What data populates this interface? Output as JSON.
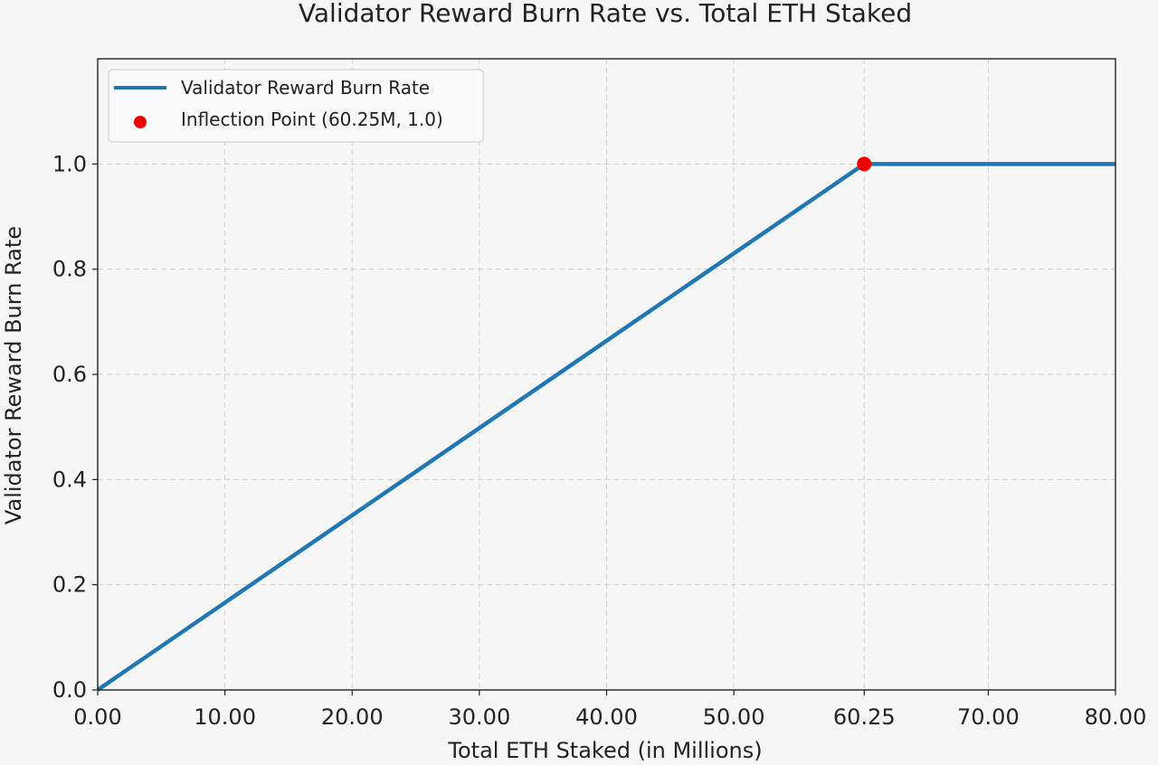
{
  "chart_data": {
    "type": "line",
    "title": "Validator Reward Burn Rate vs. Total ETH Staked",
    "xlabel": "Total ETH Staked (in Millions)",
    "ylabel": "Validator Reward Burn Rate",
    "xlim": [
      0,
      80
    ],
    "ylim": [
      0,
      1.2
    ],
    "x_ticks": [
      "0.00",
      "10.00",
      "20.00",
      "30.00",
      "40.00",
      "50.00",
      "60.25",
      "70.00",
      "80.00"
    ],
    "x_tick_values": [
      0,
      10,
      20,
      30,
      40,
      50,
      60.25,
      70,
      80
    ],
    "y_ticks": [
      "0.0",
      "0.2",
      "0.4",
      "0.6",
      "0.8",
      "1.0"
    ],
    "y_tick_values": [
      0,
      0.2,
      0.4,
      0.6,
      0.8,
      1.0
    ],
    "grid": true,
    "legend_position": "top-left",
    "series": [
      {
        "name": "Validator Reward Burn Rate",
        "kind": "line",
        "color": "#1f77b4",
        "x": [
          0,
          60.25,
          80
        ],
        "y": [
          0,
          1.0,
          1.0
        ]
      },
      {
        "name": "Inflection Point (60.25M, 1.0)",
        "kind": "scatter",
        "color": "#ee0000",
        "x": [
          60.25
        ],
        "y": [
          1.0
        ]
      }
    ]
  },
  "colors": {
    "background": "#f6f6f6",
    "grid": "#cfcfcf",
    "axis": "#222222"
  }
}
